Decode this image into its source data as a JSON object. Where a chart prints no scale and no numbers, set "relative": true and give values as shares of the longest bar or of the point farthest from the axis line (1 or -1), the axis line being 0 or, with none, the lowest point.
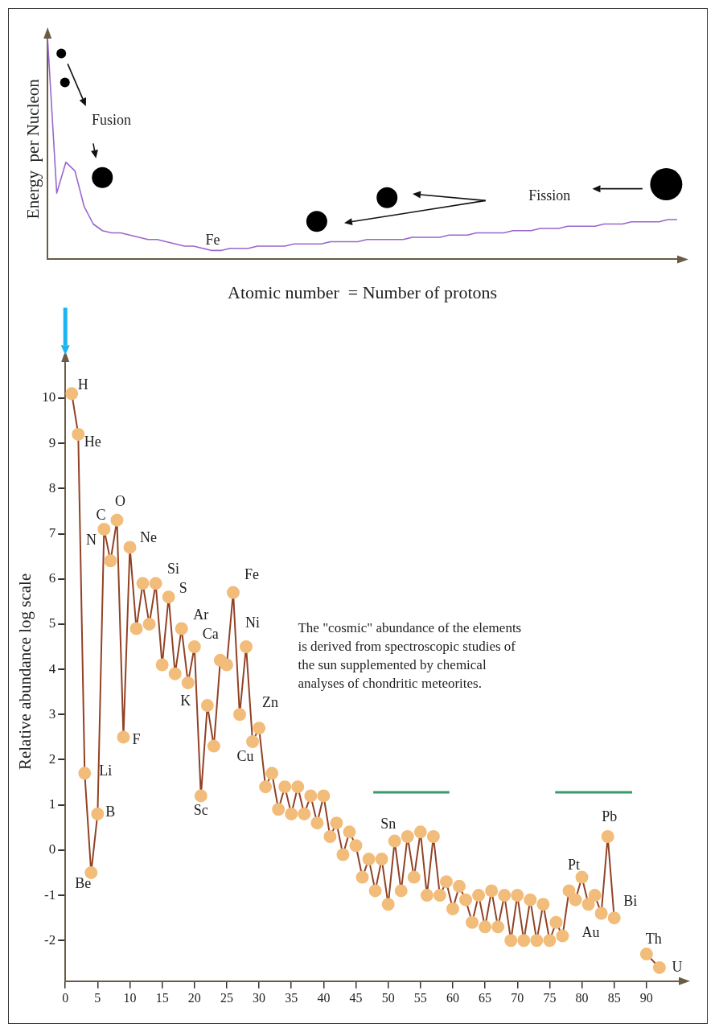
{
  "chart_data": [
    {
      "type": "line",
      "relative": true,
      "marker": "none",
      "xlabel": "Atomic number  = Number of protons",
      "ylabel": "Energy  per Nucleon",
      "categories": [
        null,
        null,
        null,
        null,
        null,
        null,
        null,
        null,
        null,
        null,
        null,
        null,
        null,
        null,
        null,
        null,
        null,
        null,
        null,
        null,
        null,
        null,
        null,
        null,
        null,
        null,
        null,
        null,
        null,
        null,
        null,
        null,
        null,
        null,
        null,
        null,
        null,
        null,
        null,
        null,
        null,
        null,
        null,
        null,
        null,
        null,
        null,
        null,
        null,
        null,
        null,
        null,
        null,
        null,
        null,
        null,
        null,
        null,
        null,
        null,
        null,
        null,
        null,
        null,
        null,
        null,
        null,
        null,
        null,
        null
      ],
      "series": [
        {
          "color": "#9966cc",
          "values": [
            1,
            0.3,
            0.44,
            0.4,
            0.24,
            0.16,
            0.13,
            0.12,
            0.12,
            0.11,
            0.1,
            0.09,
            0.09,
            0.08,
            0.07,
            0.06,
            0.06,
            0.05,
            0.04,
            0.04,
            0.05,
            0.05,
            0.05,
            0.06,
            0.06,
            0.06,
            0.06,
            0.07,
            0.07,
            0.07,
            0.07,
            0.08,
            0.08,
            0.08,
            0.08,
            0.09,
            0.09,
            0.09,
            0.09,
            0.09,
            0.1,
            0.1,
            0.1,
            0.1,
            0.11,
            0.11,
            0.11,
            0.12,
            0.12,
            0.12,
            0.12,
            0.13,
            0.13,
            0.13,
            0.14,
            0.14,
            0.14,
            0.15,
            0.15,
            0.15,
            0.15,
            0.16,
            0.16,
            0.16,
            0.17,
            0.17,
            0.17,
            0.17,
            0.18,
            0.18
          ]
        }
      ],
      "annotations": [
        "Fusion",
        "Fission",
        "Fe"
      ]
    },
    {
      "type": "line",
      "marker": "circle",
      "ylabel": "Relative abundance log scale",
      "xlim": [
        0,
        95
      ],
      "xticks": [
        0,
        5,
        10,
        15,
        20,
        25,
        30,
        35,
        40,
        45,
        50,
        55,
        60,
        65,
        70,
        75,
        80,
        85,
        90
      ],
      "ylim": [
        -2.9,
        10.8
      ],
      "yticks": [
        -2,
        -1,
        0,
        1,
        2,
        3,
        4,
        5,
        6,
        7,
        8,
        9,
        10
      ],
      "series": [
        {
          "color": "#f2bc7a",
          "x": [
            1,
            2,
            3,
            4,
            5,
            6,
            7,
            8,
            9,
            10,
            11,
            12,
            13,
            14,
            15,
            16,
            17,
            18,
            19,
            20,
            21,
            22,
            23,
            24,
            25,
            26,
            27,
            28,
            29,
            30,
            31,
            32,
            33,
            34,
            35,
            36,
            37,
            38,
            39,
            40,
            41,
            42,
            43,
            44,
            45,
            46,
            47,
            48,
            49,
            50,
            51,
            52,
            53,
            54,
            55,
            56,
            57,
            58,
            59,
            60,
            61,
            62,
            63,
            64,
            65,
            66,
            67,
            68,
            69,
            70,
            71,
            72,
            73,
            74,
            75,
            76,
            77,
            78,
            79,
            80,
            81,
            82,
            83,
            84,
            85
          ],
          "values": [
            10.1,
            9.2,
            1.7,
            -0.5,
            0.8,
            7.1,
            6.4,
            7.3,
            2.5,
            6.7,
            4.9,
            5.9,
            5.0,
            5.9,
            4.1,
            5.6,
            3.9,
            4.9,
            3.7,
            4.5,
            1.2,
            3.2,
            2.3,
            4.2,
            4.1,
            5.7,
            3.0,
            4.5,
            2.4,
            2.7,
            1.4,
            1.7,
            0.9,
            1.4,
            0.8,
            1.4,
            0.8,
            1.2,
            0.6,
            1.2,
            0.3,
            0.6,
            -0.1,
            0.4,
            0.1,
            -0.6,
            -0.2,
            -0.9,
            -0.2,
            -1.2,
            0.2,
            -0.9,
            0.3,
            -0.6,
            0.4,
            -1.0,
            0.3,
            -1.0,
            -0.7,
            -1.3,
            -0.8,
            -1.1,
            -1.6,
            -1.0,
            -1.7,
            -0.9,
            -1.7,
            -1.0,
            -2.0,
            -1.0,
            -2.0,
            -1.1,
            -2.0,
            -1.2,
            -2.0,
            -1.6,
            -1.9,
            -0.9,
            -1.1,
            -0.6,
            -1.2,
            -1.0,
            -1.4,
            0.3,
            -1.5
          ]
        },
        {
          "color": "#f2bc7a",
          "x": [
            90,
            92
          ],
          "values": [
            -2.3,
            -2.6
          ]
        }
      ],
      "annotations": [
        {
          "text": "H",
          "x": 1,
          "y": 10.1
        },
        {
          "text": "He",
          "x": 2,
          "y": 9.2
        },
        {
          "text": "N",
          "x": 7,
          "y": 6.4
        },
        {
          "text": "C",
          "x": 6,
          "y": 7.1
        },
        {
          "text": "O",
          "x": 8,
          "y": 7.3
        },
        {
          "text": "Ne",
          "x": 10,
          "y": 6.7
        },
        {
          "text": "Li",
          "x": 3,
          "y": 1.7
        },
        {
          "text": "B",
          "x": 5,
          "y": 0.8
        },
        {
          "text": "Be",
          "x": 4,
          "y": -0.5
        },
        {
          "text": "F",
          "x": 9,
          "y": 2.5
        },
        {
          "text": "Si",
          "x": 14,
          "y": 5.9
        },
        {
          "text": "S",
          "x": 16,
          "y": 5.6
        },
        {
          "text": "Ar",
          "x": 18,
          "y": 4.9
        },
        {
          "text": "Ca",
          "x": 20,
          "y": 4.5
        },
        {
          "text": "K",
          "x": 19,
          "y": 3.7
        },
        {
          "text": "Sc",
          "x": 21,
          "y": 1.2
        },
        {
          "text": "Fe",
          "x": 26,
          "y": 5.7
        },
        {
          "text": "Ni",
          "x": 28,
          "y": 4.5
        },
        {
          "text": "Zn",
          "x": 30,
          "y": 2.7
        },
        {
          "text": "Cu",
          "x": 29,
          "y": 2.4
        },
        {
          "text": "Sn",
          "x": 51,
          "y": 0.2
        },
        {
          "text": "Pt",
          "x": 80,
          "y": -0.6
        },
        {
          "text": "Au",
          "x": 81,
          "y": -1.2
        },
        {
          "text": "Pb",
          "x": 84,
          "y": 0.3
        },
        {
          "text": "Bi",
          "x": 85,
          "y": -1.5
        },
        {
          "text": "Th",
          "x": 90,
          "y": -2.3
        },
        {
          "text": "U",
          "x": 92,
          "y": -2.6
        },
        "The \"cosmic\" abundance of the elements is derived from spectroscopic studies of the sun supplemented by chemical analyses of chondritic meteorites."
      ]
    }
  ]
}
